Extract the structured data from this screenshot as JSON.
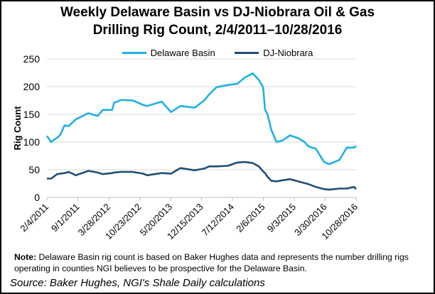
{
  "chart_data": {
    "type": "line",
    "title": "Weekly Delaware Basin vs DJ-Niobrara Oil & Gas Drilling Rig Count, 2/4/2011–10/28/2016",
    "title_lines": [
      "Weekly Delaware Basin vs DJ-Niobrara Oil & Gas",
      "Drilling Rig Count, 2/4/2011–10/28/2016"
    ],
    "xlabel": "",
    "ylabel": "Rig Count",
    "ylim": [
      0,
      250
    ],
    "yticks": [
      0,
      50,
      100,
      150,
      200,
      250
    ],
    "xticks": [
      "2/4/2011",
      "9/1/2011",
      "3/28/2012",
      "10/23/2012",
      "5/20/2013",
      "12/15/2013",
      "7/12/2014",
      "2/6/2015",
      "9/3/2015",
      "3/30/2016",
      "10/28/2016"
    ],
    "xlim": [
      "2011-02-04",
      "2016-10-28"
    ],
    "grid": "horizontal",
    "legend": "top",
    "x": [
      "2011-02-04",
      "2011-03-04",
      "2011-04-15",
      "2011-05-06",
      "2011-06-03",
      "2011-07-01",
      "2011-08-19",
      "2011-11-11",
      "2012-01-13",
      "2012-02-17",
      "2012-04-20",
      "2012-05-04",
      "2012-06-22",
      "2012-09-07",
      "2012-11-16",
      "2012-12-14",
      "2013-03-22",
      "2013-05-24",
      "2013-07-26",
      "2013-11-01",
      "2014-01-03",
      "2014-02-07",
      "2014-03-28",
      "2014-06-13",
      "2014-08-15",
      "2014-10-03",
      "2014-11-28",
      "2015-01-09",
      "2015-02-06",
      "2015-02-20",
      "2015-03-06",
      "2015-04-03",
      "2015-05-08",
      "2015-06-19",
      "2015-08-07",
      "2015-10-02",
      "2015-11-13",
      "2015-12-11",
      "2016-01-29",
      "2016-03-25",
      "2016-04-29",
      "2016-07-08",
      "2016-08-26",
      "2016-10-14",
      "2016-10-28"
    ],
    "series": [
      {
        "name": "Delaware Basin",
        "color": "#1fb0e6",
        "values": [
          111,
          100,
          108,
          113,
          130,
          129,
          141,
          152,
          147,
          158,
          158,
          171,
          176,
          175,
          167,
          165,
          173,
          154,
          165,
          162,
          175,
          186,
          199,
          203,
          205,
          216,
          224,
          212,
          199,
          158,
          152,
          122,
          100,
          103,
          112,
          107,
          100,
          92,
          88,
          64,
          60,
          68,
          90,
          90,
          93
        ]
      },
      {
        "name": "DJ-Niobrara",
        "color": "#1f4e79",
        "values": [
          34,
          34,
          42,
          43,
          44,
          46,
          40,
          48,
          45,
          42,
          44,
          45,
          46,
          46,
          43,
          40,
          44,
          43,
          53,
          49,
          52,
          56,
          56,
          57,
          63,
          64,
          62,
          56,
          47,
          44,
          38,
          30,
          29,
          31,
          33,
          29,
          26,
          24,
          19,
          15,
          14,
          16,
          16,
          19,
          15
        ]
      }
    ]
  },
  "note": {
    "label": "Note:",
    "text": " Delaware Basin rig count is based on Baker Hughes data and represents the number drilling rigs operating in counties NGI believes to be prospective for the Delaware Basin."
  },
  "source": "Source: Baker Hughes, NGI's Shale Daily calculations"
}
